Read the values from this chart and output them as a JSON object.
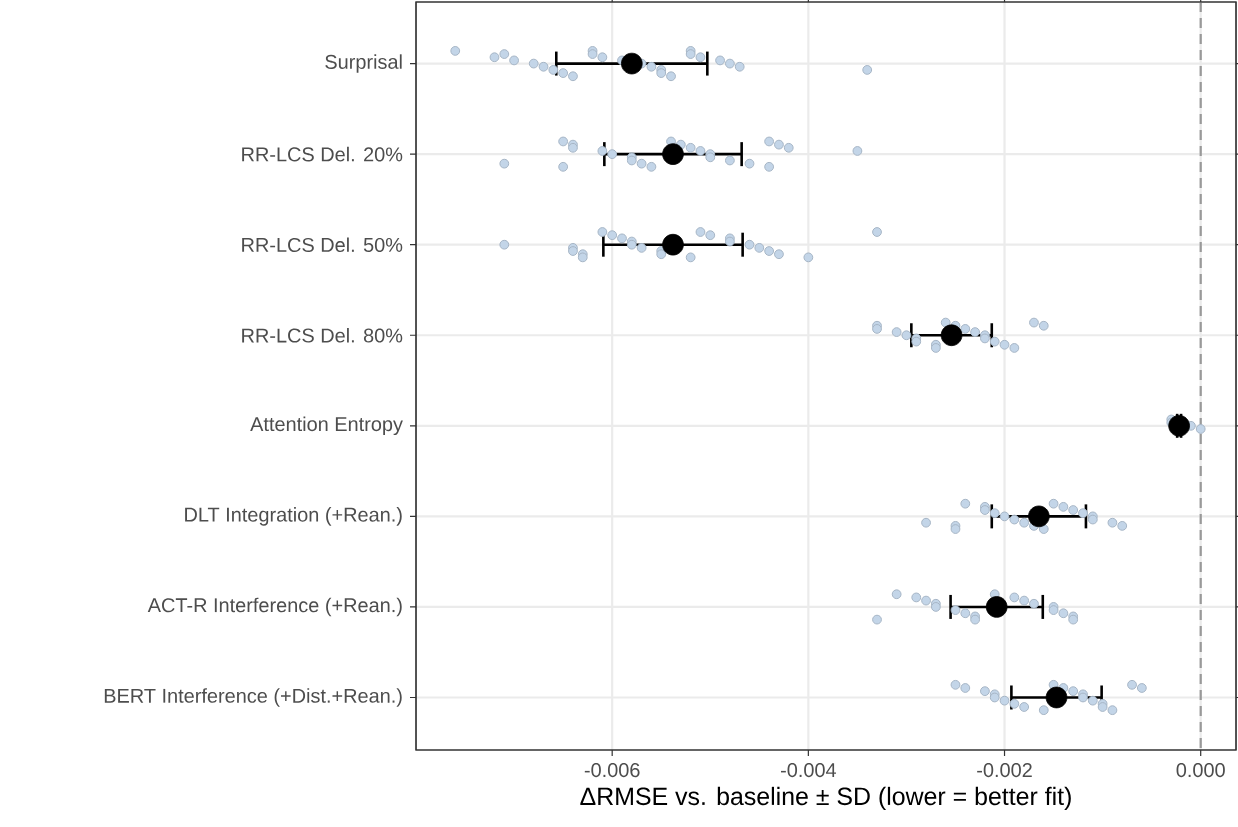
{
  "chart_data": {
    "type": "scatter",
    "orientation": "horizontal",
    "xlabel": "ΔRMSE vs. baseline ± SD (lower = better fit)",
    "categories": [
      "Surprisal",
      "RR-LCS Del. 20%",
      "RR-LCS Del. 50%",
      "RR-LCS Del. 80%",
      "Attention Entropy",
      "DLT Integration (+Rean.)",
      "ACT-R Interference (+Rean.)",
      "BERT Interference (+Dist.+Rean.)"
    ],
    "xlim": [
      -0.008,
      0.00036
    ],
    "xticks": [
      {
        "value": -0.006,
        "label": "-0.006"
      },
      {
        "value": -0.004,
        "label": "-0.004"
      },
      {
        "value": -0.002,
        "label": "-0.002"
      },
      {
        "value": 0,
        "label": "0.000"
      }
    ],
    "grid": true,
    "ref_lines": [
      {
        "axis": "x",
        "value": 0,
        "color": "#999999",
        "line_style": "dashed"
      }
    ],
    "series": [
      {
        "color": "#c3d5e8",
        "x": [
          "Surprisal",
          "Surprisal",
          "Surprisal",
          "Surprisal",
          "Surprisal",
          "Surprisal",
          "Surprisal",
          "Surprisal",
          "Surprisal",
          "Surprisal",
          "Surprisal",
          "Surprisal",
          "Surprisal",
          "Surprisal",
          "Surprisal",
          "Surprisal",
          "Surprisal",
          "Surprisal",
          "Surprisal",
          "Surprisal",
          "Surprisal",
          "Surprisal",
          "Surprisal",
          "Surprisal",
          "Surprisal",
          "RR-LCS Del. 20%",
          "RR-LCS Del. 20%",
          "RR-LCS Del. 20%",
          "RR-LCS Del. 20%",
          "RR-LCS Del. 20%",
          "RR-LCS Del. 20%",
          "RR-LCS Del. 20%",
          "RR-LCS Del. 20%",
          "RR-LCS Del. 20%",
          "RR-LCS Del. 20%",
          "RR-LCS Del. 20%",
          "RR-LCS Del. 20%",
          "RR-LCS Del. 20%",
          "RR-LCS Del. 20%",
          "RR-LCS Del. 20%",
          "RR-LCS Del. 20%",
          "RR-LCS Del. 20%",
          "RR-LCS Del. 20%",
          "RR-LCS Del. 20%",
          "RR-LCS Del. 20%",
          "RR-LCS Del. 20%",
          "RR-LCS Del. 20%",
          "RR-LCS Del. 20%",
          "RR-LCS Del. 20%",
          "RR-LCS Del. 50%",
          "RR-LCS Del. 50%",
          "RR-LCS Del. 50%",
          "RR-LCS Del. 50%",
          "RR-LCS Del. 50%",
          "RR-LCS Del. 50%",
          "RR-LCS Del. 50%",
          "RR-LCS Del. 50%",
          "RR-LCS Del. 50%",
          "RR-LCS Del. 50%",
          "RR-LCS Del. 50%",
          "RR-LCS Del. 50%",
          "RR-LCS Del. 50%",
          "RR-LCS Del. 50%",
          "RR-LCS Del. 50%",
          "RR-LCS Del. 50%",
          "RR-LCS Del. 50%",
          "RR-LCS Del. 50%",
          "RR-LCS Del. 50%",
          "RR-LCS Del. 50%",
          "RR-LCS Del. 50%",
          "RR-LCS Del. 50%",
          "RR-LCS Del. 50%",
          "RR-LCS Del. 50%",
          "RR-LCS Del. 80%",
          "RR-LCS Del. 80%",
          "RR-LCS Del. 80%",
          "RR-LCS Del. 80%",
          "RR-LCS Del. 80%",
          "RR-LCS Del. 80%",
          "RR-LCS Del. 80%",
          "RR-LCS Del. 80%",
          "RR-LCS Del. 80%",
          "RR-LCS Del. 80%",
          "RR-LCS Del. 80%",
          "RR-LCS Del. 80%",
          "RR-LCS Del. 80%",
          "RR-LCS Del. 80%",
          "RR-LCS Del. 80%",
          "RR-LCS Del. 80%",
          "RR-LCS Del. 80%",
          "RR-LCS Del. 80%",
          "RR-LCS Del. 80%",
          "Attention Entropy",
          "Attention Entropy",
          "Attention Entropy",
          "Attention Entropy",
          "DLT Integration (+Rean.)",
          "DLT Integration (+Rean.)",
          "DLT Integration (+Rean.)",
          "DLT Integration (+Rean.)",
          "DLT Integration (+Rean.)",
          "DLT Integration (+Rean.)",
          "DLT Integration (+Rean.)",
          "DLT Integration (+Rean.)",
          "DLT Integration (+Rean.)",
          "DLT Integration (+Rean.)",
          "DLT Integration (+Rean.)",
          "DLT Integration (+Rean.)",
          "DLT Integration (+Rean.)",
          "DLT Integration (+Rean.)",
          "DLT Integration (+Rean.)",
          "DLT Integration (+Rean.)",
          "DLT Integration (+Rean.)",
          "DLT Integration (+Rean.)",
          "DLT Integration (+Rean.)",
          "DLT Integration (+Rean.)",
          "ACT-R Interference (+Rean.)",
          "ACT-R Interference (+Rean.)",
          "ACT-R Interference (+Rean.)",
          "ACT-R Interference (+Rean.)",
          "ACT-R Interference (+Rean.)",
          "ACT-R Interference (+Rean.)",
          "ACT-R Interference (+Rean.)",
          "ACT-R Interference (+Rean.)",
          "ACT-R Interference (+Rean.)",
          "ACT-R Interference (+Rean.)",
          "ACT-R Interference (+Rean.)",
          "ACT-R Interference (+Rean.)",
          "ACT-R Interference (+Rean.)",
          "ACT-R Interference (+Rean.)",
          "ACT-R Interference (+Rean.)",
          "ACT-R Interference (+Rean.)",
          "ACT-R Interference (+Rean.)",
          "ACT-R Interference (+Rean.)",
          "ACT-R Interference (+Rean.)",
          "BERT Interference (+Dist.+Rean.)",
          "BERT Interference (+Dist.+Rean.)",
          "BERT Interference (+Dist.+Rean.)",
          "BERT Interference (+Dist.+Rean.)",
          "BERT Interference (+Dist.+Rean.)",
          "BERT Interference (+Dist.+Rean.)",
          "BERT Interference (+Dist.+Rean.)",
          "BERT Interference (+Dist.+Rean.)",
          "BERT Interference (+Dist.+Rean.)",
          "BERT Interference (+Dist.+Rean.)",
          "BERT Interference (+Dist.+Rean.)",
          "BERT Interference (+Dist.+Rean.)",
          "BERT Interference (+Dist.+Rean.)",
          "BERT Interference (+Dist.+Rean.)",
          "BERT Interference (+Dist.+Rean.)",
          "BERT Interference (+Dist.+Rean.)",
          "BERT Interference (+Dist.+Rean.)",
          "BERT Interference (+Dist.+Rean.)",
          "BERT Interference (+Dist.+Rean.)",
          "BERT Interference (+Dist.+Rean.)"
        ],
        "values": [
          -0.0076,
          -0.0071,
          -0.0072,
          -0.007,
          -0.0068,
          -0.0067,
          -0.0066,
          -0.0065,
          -0.0064,
          -0.0062,
          -0.0062,
          -0.0061,
          -0.0059,
          -0.0057,
          -0.0056,
          -0.0055,
          -0.0055,
          -0.0054,
          -0.0052,
          -0.0052,
          -0.0051,
          -0.0049,
          -0.0048,
          -0.0047,
          -0.0034,
          -0.0071,
          -0.0065,
          -0.0065,
          -0.0064,
          -0.0064,
          -0.0061,
          -0.006,
          -0.0058,
          -0.0058,
          -0.0057,
          -0.0056,
          -0.0054,
          -0.0053,
          -0.0052,
          -0.0051,
          -0.005,
          -0.005,
          -0.0048,
          -0.0046,
          -0.0044,
          -0.0044,
          -0.0043,
          -0.0042,
          -0.0035,
          -0.0071,
          -0.0064,
          -0.0064,
          -0.0063,
          -0.0063,
          -0.0061,
          -0.006,
          -0.0059,
          -0.0058,
          -0.0058,
          -0.0057,
          -0.0055,
          -0.0055,
          -0.0052,
          -0.0051,
          -0.005,
          -0.0048,
          -0.0048,
          -0.0046,
          -0.0045,
          -0.0044,
          -0.0043,
          -0.004,
          -0.0033,
          -0.0033,
          -0.0033,
          -0.0031,
          -0.003,
          -0.0029,
          -0.0029,
          -0.0027,
          -0.0027,
          -0.0026,
          -0.0025,
          -0.0024,
          -0.0023,
          -0.0022,
          -0.0022,
          -0.0021,
          -0.002,
          -0.0019,
          -0.0017,
          -0.0016,
          -0.0003,
          -0.0003,
          -0.0001,
          0.0,
          -0.0028,
          -0.0025,
          -0.0025,
          -0.0024,
          -0.0022,
          -0.0022,
          -0.0021,
          -0.002,
          -0.0019,
          -0.0018,
          -0.0017,
          -0.0016,
          -0.0015,
          -0.0014,
          -0.0013,
          -0.0012,
          -0.0011,
          -0.0011,
          -0.0009,
          -0.0008,
          -0.0033,
          -0.0031,
          -0.0029,
          -0.0028,
          -0.0027,
          -0.0027,
          -0.0025,
          -0.0024,
          -0.0023,
          -0.0023,
          -0.0021,
          -0.0019,
          -0.0018,
          -0.0017,
          -0.0015,
          -0.0015,
          -0.0014,
          -0.0013,
          -0.0013,
          -0.0025,
          -0.0024,
          -0.0022,
          -0.0021,
          -0.0021,
          -0.002,
          -0.0019,
          -0.0018,
          -0.0016,
          -0.0015,
          -0.0014,
          -0.0013,
          -0.0012,
          -0.0012,
          -0.0011,
          -0.001,
          -0.001,
          -0.0009,
          -0.0007,
          -0.0006
        ]
      },
      {
        "color": "#000000",
        "values": [
          -0.0058,
          -0.00538,
          -0.00538,
          -0.00254,
          -0.00022,
          -0.00165,
          -0.00208,
          -0.00147
        ],
        "errors": [
          0.00077,
          0.0007,
          0.00071,
          0.00041,
          2e-05,
          0.00048,
          0.00047,
          0.00046
        ]
      }
    ]
  }
}
